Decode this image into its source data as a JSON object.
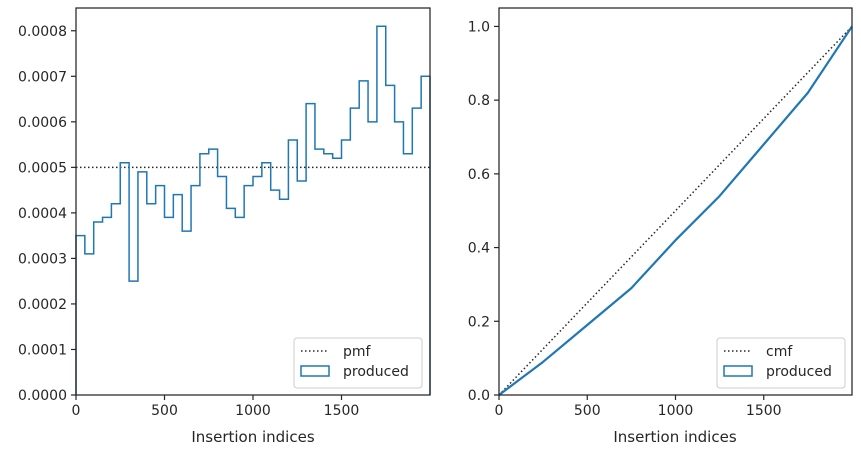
{
  "chart_data": [
    {
      "type": "histogram-step",
      "xlabel": "Insertion indices",
      "ylabel": "",
      "xlim": [
        0,
        2000
      ],
      "ylim": [
        0,
        0.00085
      ],
      "xticks": [
        0,
        500,
        1000,
        1500
      ],
      "xtick_labels": [
        "0",
        "500",
        "1000",
        "1500"
      ],
      "yticks": [
        0,
        0.0001,
        0.0002,
        0.0003,
        0.0004,
        0.0005,
        0.0006,
        0.0007,
        0.0008
      ],
      "ytick_labels": [
        "0.0000",
        "0.0001",
        "0.0002",
        "0.0003",
        "0.0004",
        "0.0005",
        "0.0006",
        "0.0007",
        "0.0008"
      ],
      "bin_edges": [
        0,
        50,
        100,
        150,
        200,
        250,
        300,
        350,
        400,
        450,
        500,
        550,
        600,
        650,
        700,
        750,
        800,
        850,
        900,
        950,
        1000,
        1050,
        1100,
        1150,
        1200,
        1250,
        1300,
        1350,
        1400,
        1450,
        1500,
        1550,
        1600,
        1650,
        1700,
        1750,
        1800,
        1850,
        1900,
        1950,
        2000
      ],
      "series": [
        {
          "name": "produced",
          "style": "step",
          "color": "#1f77b4",
          "values": [
            0.00035,
            0.00031,
            0.00038,
            0.00039,
            0.00042,
            0.00051,
            0.00025,
            0.00049,
            0.00042,
            0.00046,
            0.00039,
            0.00044,
            0.00036,
            0.00046,
            0.00053,
            0.00054,
            0.00048,
            0.00041,
            0.00039,
            0.00046,
            0.00048,
            0.00051,
            0.00045,
            0.00043,
            0.00056,
            0.00047,
            0.00064,
            0.00054,
            0.00053,
            0.00052,
            0.00056,
            0.00063,
            0.00069,
            0.0006,
            0.00081,
            0.00068,
            0.0006,
            0.00053,
            0.00063,
            0.0007
          ]
        },
        {
          "name": "pmf",
          "style": "dotted",
          "color": "#262626",
          "value": 0.0005
        }
      ],
      "legend": {
        "placement": "lower-right",
        "entries": [
          {
            "label": "pmf",
            "style": "dotted"
          },
          {
            "label": "produced",
            "style": "patch"
          }
        ]
      },
      "grid": false
    },
    {
      "type": "line",
      "xlabel": "Insertion indices",
      "ylabel": "",
      "xlim": [
        0,
        2000
      ],
      "ylim": [
        0,
        1.05
      ],
      "xticks": [
        0,
        500,
        1000,
        1500
      ],
      "xtick_labels": [
        "0",
        "500",
        "1000",
        "1500"
      ],
      "yticks": [
        0,
        0.2,
        0.4,
        0.6,
        0.8,
        1.0
      ],
      "ytick_labels": [
        "0.0",
        "0.2",
        "0.4",
        "0.6",
        "0.8",
        "1.0"
      ],
      "series": [
        {
          "name": "cmf",
          "style": "dotted",
          "color": "#262626",
          "x": [
            0,
            2000
          ],
          "y": [
            0,
            1.0
          ]
        },
        {
          "name": "produced",
          "style": "solid",
          "color": "#1f77b4",
          "x": [
            0,
            250,
            500,
            750,
            1000,
            1250,
            1500,
            1750,
            2000
          ],
          "y": [
            0,
            0.09,
            0.19,
            0.29,
            0.42,
            0.54,
            0.68,
            0.82,
            1.0
          ]
        }
      ],
      "legend": {
        "placement": "lower-right",
        "entries": [
          {
            "label": "cmf",
            "style": "dotted"
          },
          {
            "label": "produced",
            "style": "patch"
          }
        ]
      },
      "grid": false
    }
  ]
}
